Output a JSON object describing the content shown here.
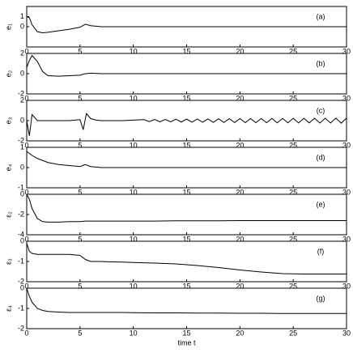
{
  "chart_data": [
    {
      "type": "line",
      "label": "(a)",
      "ylabel": "e₁",
      "xlim": [
        0,
        30
      ],
      "xticks": [
        0,
        5,
        10,
        15,
        20,
        25,
        30
      ],
      "ylim": [
        -2,
        2
      ],
      "yticks": [
        0,
        1
      ],
      "color": "#000000",
      "x": [
        0,
        0.25,
        0.5,
        1,
        1.5,
        2,
        3,
        4,
        5,
        5.5,
        6,
        7,
        8,
        9,
        10,
        12,
        14,
        16,
        18,
        20,
        22,
        24,
        26,
        28,
        30
      ],
      "values": [
        1,
        0.9,
        0.2,
        -0.5,
        -0.6,
        -0.55,
        -0.4,
        -0.25,
        -0.05,
        0.25,
        0.1,
        0,
        0,
        0,
        0,
        0,
        0,
        0,
        0,
        0,
        0,
        0,
        0,
        0,
        0
      ]
    },
    {
      "type": "line",
      "label": "(b)",
      "ylabel": "e₂",
      "xlim": [
        0,
        30
      ],
      "xticks": [
        0,
        5,
        10,
        15,
        20,
        25,
        30
      ],
      "ylim": [
        -2,
        2
      ],
      "yticks": [
        -2,
        0,
        2
      ],
      "color": "#000000",
      "x": [
        0,
        0.25,
        0.5,
        1,
        1.5,
        2,
        3,
        4,
        5,
        5.5,
        6,
        7,
        8,
        9,
        10,
        12,
        14,
        16,
        18,
        20,
        22,
        24,
        26,
        28,
        30
      ],
      "values": [
        0.6,
        1.3,
        1.8,
        1.2,
        0.2,
        -0.2,
        -0.25,
        -0.2,
        -0.15,
        0,
        0.05,
        0,
        0,
        0,
        0,
        0,
        0,
        0,
        0,
        0,
        0,
        0,
        0,
        0,
        0
      ]
    },
    {
      "type": "line",
      "label": "(c)",
      "ylabel": "e₃",
      "xlim": [
        0,
        30
      ],
      "xticks": [
        0,
        5,
        10,
        15,
        20,
        25,
        30
      ],
      "ylim": [
        -2,
        2
      ],
      "yticks": [
        -2,
        0,
        2
      ],
      "color": "#000000",
      "x": [
        0,
        0.25,
        0.5,
        1,
        1.5,
        2,
        3,
        4,
        5,
        5.3,
        5.6,
        6,
        6.5,
        7,
        8,
        9,
        10,
        11,
        11.5,
        12,
        12.5,
        13,
        13.5,
        14,
        14.5,
        15,
        15.5,
        16,
        16.5,
        17,
        17.5,
        18,
        18.5,
        19,
        19.5,
        20,
        20.5,
        21,
        21.5,
        22,
        22.5,
        23,
        23.5,
        24,
        24.5,
        25,
        25.5,
        26,
        26.5,
        27,
        27.5,
        28,
        28.5,
        29,
        29.5,
        30
      ],
      "values": [
        0,
        -1.5,
        0.6,
        0,
        0,
        0,
        0,
        0,
        0.1,
        -0.9,
        0.7,
        0.2,
        0.05,
        0,
        0,
        0,
        0.05,
        0.1,
        -0.1,
        0.12,
        -0.12,
        0.12,
        -0.12,
        0.14,
        -0.14,
        0.15,
        -0.15,
        0.16,
        -0.16,
        0.17,
        -0.17,
        0.18,
        -0.18,
        0.19,
        -0.19,
        0.2,
        -0.2,
        0.2,
        -0.2,
        0.21,
        -0.21,
        0.22,
        -0.22,
        0.22,
        -0.22,
        0.23,
        -0.23,
        0.23,
        -0.23,
        0.24,
        -0.24,
        0.24,
        -0.24,
        0.25,
        -0.25,
        0.25
      ]
    },
    {
      "type": "line",
      "label": "(d)",
      "ylabel": "e₄",
      "xlim": [
        0,
        30
      ],
      "xticks": [
        0,
        5,
        10,
        15,
        20,
        25,
        30
      ],
      "ylim": [
        -1,
        1
      ],
      "yticks": [
        -1,
        0,
        1
      ],
      "color": "#000000",
      "x": [
        0,
        0.25,
        0.5,
        1,
        1.5,
        2,
        3,
        4,
        5,
        5.5,
        6,
        7,
        8,
        9,
        10,
        12,
        14,
        16,
        18,
        20,
        22,
        24,
        26,
        28,
        30
      ],
      "values": [
        0.8,
        0.7,
        0.6,
        0.45,
        0.35,
        0.25,
        0.15,
        0.1,
        0.05,
        0.15,
        0.05,
        0,
        0,
        0,
        0,
        0,
        0,
        0,
        0,
        0,
        0,
        0,
        0,
        0,
        0
      ]
    },
    {
      "type": "line",
      "label": "(e)",
      "ylabel": "ε₂",
      "xlim": [
        0,
        30
      ],
      "xticks": [
        0,
        5,
        10,
        15,
        20,
        25,
        30
      ],
      "ylim": [
        -4,
        0
      ],
      "yticks": [
        -4,
        -2,
        0
      ],
      "color": "#000000",
      "x": [
        0,
        0.25,
        0.5,
        1,
        1.5,
        2,
        3,
        4,
        5,
        5.5,
        6,
        7,
        8,
        9,
        10,
        12,
        14,
        16,
        18,
        20,
        22,
        24,
        26,
        28,
        30
      ],
      "values": [
        0,
        -0.5,
        -1.4,
        -2.4,
        -2.7,
        -2.75,
        -2.75,
        -2.7,
        -2.7,
        -2.65,
        -2.65,
        -2.65,
        -2.65,
        -2.65,
        -2.65,
        -2.65,
        -2.62,
        -2.62,
        -2.62,
        -2.6,
        -2.6,
        -2.6,
        -2.6,
        -2.6,
        -2.6
      ]
    },
    {
      "type": "line",
      "label": "(f)",
      "ylabel": "ε₃",
      "xlim": [
        0,
        30
      ],
      "xticks": [
        0,
        5,
        10,
        15,
        20,
        25,
        30
      ],
      "ylim": [
        -2,
        0
      ],
      "yticks": [
        -2,
        -1,
        0
      ],
      "color": "#000000",
      "x": [
        0,
        0.25,
        0.5,
        1,
        1.5,
        2,
        3,
        4,
        5,
        5.5,
        6,
        7,
        8,
        9,
        10,
        12,
        14,
        16,
        18,
        20,
        22,
        24,
        26,
        28,
        30
      ],
      "values": [
        -0.1,
        -0.5,
        -0.6,
        -0.65,
        -0.65,
        -0.65,
        -0.65,
        -0.65,
        -0.7,
        -0.9,
        -1,
        -1,
        -1.02,
        -1.03,
        -1.05,
        -1.08,
        -1.12,
        -1.2,
        -1.3,
        -1.42,
        -1.52,
        -1.6,
        -1.62,
        -1.62,
        -1.62
      ]
    },
    {
      "type": "line",
      "label": "(g)",
      "ylabel": "ε₄",
      "xlabel": "time t",
      "xlim": [
        0,
        30
      ],
      "xticks": [
        0,
        5,
        10,
        15,
        20,
        25,
        30
      ],
      "ylim": [
        -2,
        0
      ],
      "yticks": [
        -2,
        -1,
        0
      ],
      "color": "#000000",
      "x": [
        0,
        0.25,
        0.5,
        1,
        1.5,
        2,
        3,
        4,
        5,
        5.5,
        6,
        7,
        8,
        9,
        10,
        12,
        14,
        16,
        18,
        20,
        22,
        24,
        26,
        28,
        30
      ],
      "values": [
        0,
        -0.4,
        -0.7,
        -1,
        -1.1,
        -1.15,
        -1.18,
        -1.2,
        -1.2,
        -1.2,
        -1.2,
        -1.2,
        -1.2,
        -1.2,
        -1.21,
        -1.22,
        -1.22,
        -1.23,
        -1.23,
        -1.24,
        -1.24,
        -1.25,
        -1.25,
        -1.25,
        -1.25
      ]
    }
  ]
}
